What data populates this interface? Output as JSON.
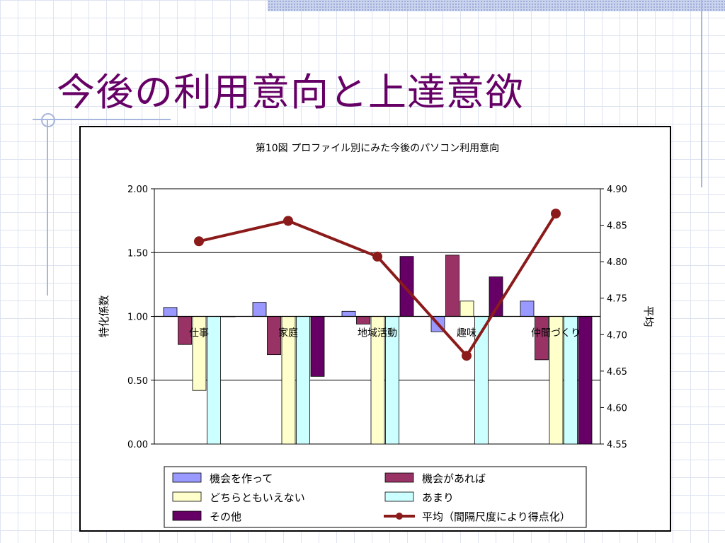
{
  "slide": {
    "title": "今後の利用意向と上達意欲"
  },
  "chart_data": {
    "type": "bar",
    "title": "第10図  プロファイル別にみた今後のパソコン利用意向",
    "categories": [
      "仕事",
      "家庭",
      "地域活動",
      "趣味",
      "仲間づくり"
    ],
    "ylabel": "特化係数",
    "ylim": [
      0,
      2
    ],
    "yticks": [
      "0.00",
      "0.50",
      "1.00",
      "1.50",
      "2.00"
    ],
    "y2label": "平均",
    "y2lim": [
      4.55,
      4.9
    ],
    "y2ticks": [
      "4.55",
      "4.60",
      "4.65",
      "4.70",
      "4.75",
      "4.80",
      "4.85",
      "4.90"
    ],
    "baseline": 1.0,
    "gridlines": [
      0.5,
      1.5
    ],
    "series": [
      {
        "name": "機会を作って",
        "color": "#9999ff",
        "values": [
          1.07,
          1.11,
          1.04,
          0.88,
          1.12
        ]
      },
      {
        "name": "機会があれば",
        "color": "#993366",
        "values": [
          0.78,
          0.7,
          0.94,
          1.48,
          0.66
        ]
      },
      {
        "name": "どちらともいえない",
        "color": "#ffffcc",
        "values": [
          0.42,
          0.0,
          0.0,
          1.12,
          0.0
        ]
      },
      {
        "name": "あまり",
        "color": "#ccffff",
        "values": [
          0.0,
          0.0,
          0.0,
          0.0,
          0.0
        ]
      },
      {
        "name": "その他",
        "color": "#660066",
        "values": [
          1.0,
          0.53,
          1.47,
          1.31,
          0.0
        ]
      }
    ],
    "line_series": {
      "name": "平均（間隔尺度により得点化）",
      "color": "#8b1a1a",
      "values": [
        4.828,
        4.856,
        4.807,
        4.671,
        4.866
      ]
    },
    "legend": "bottom"
  }
}
